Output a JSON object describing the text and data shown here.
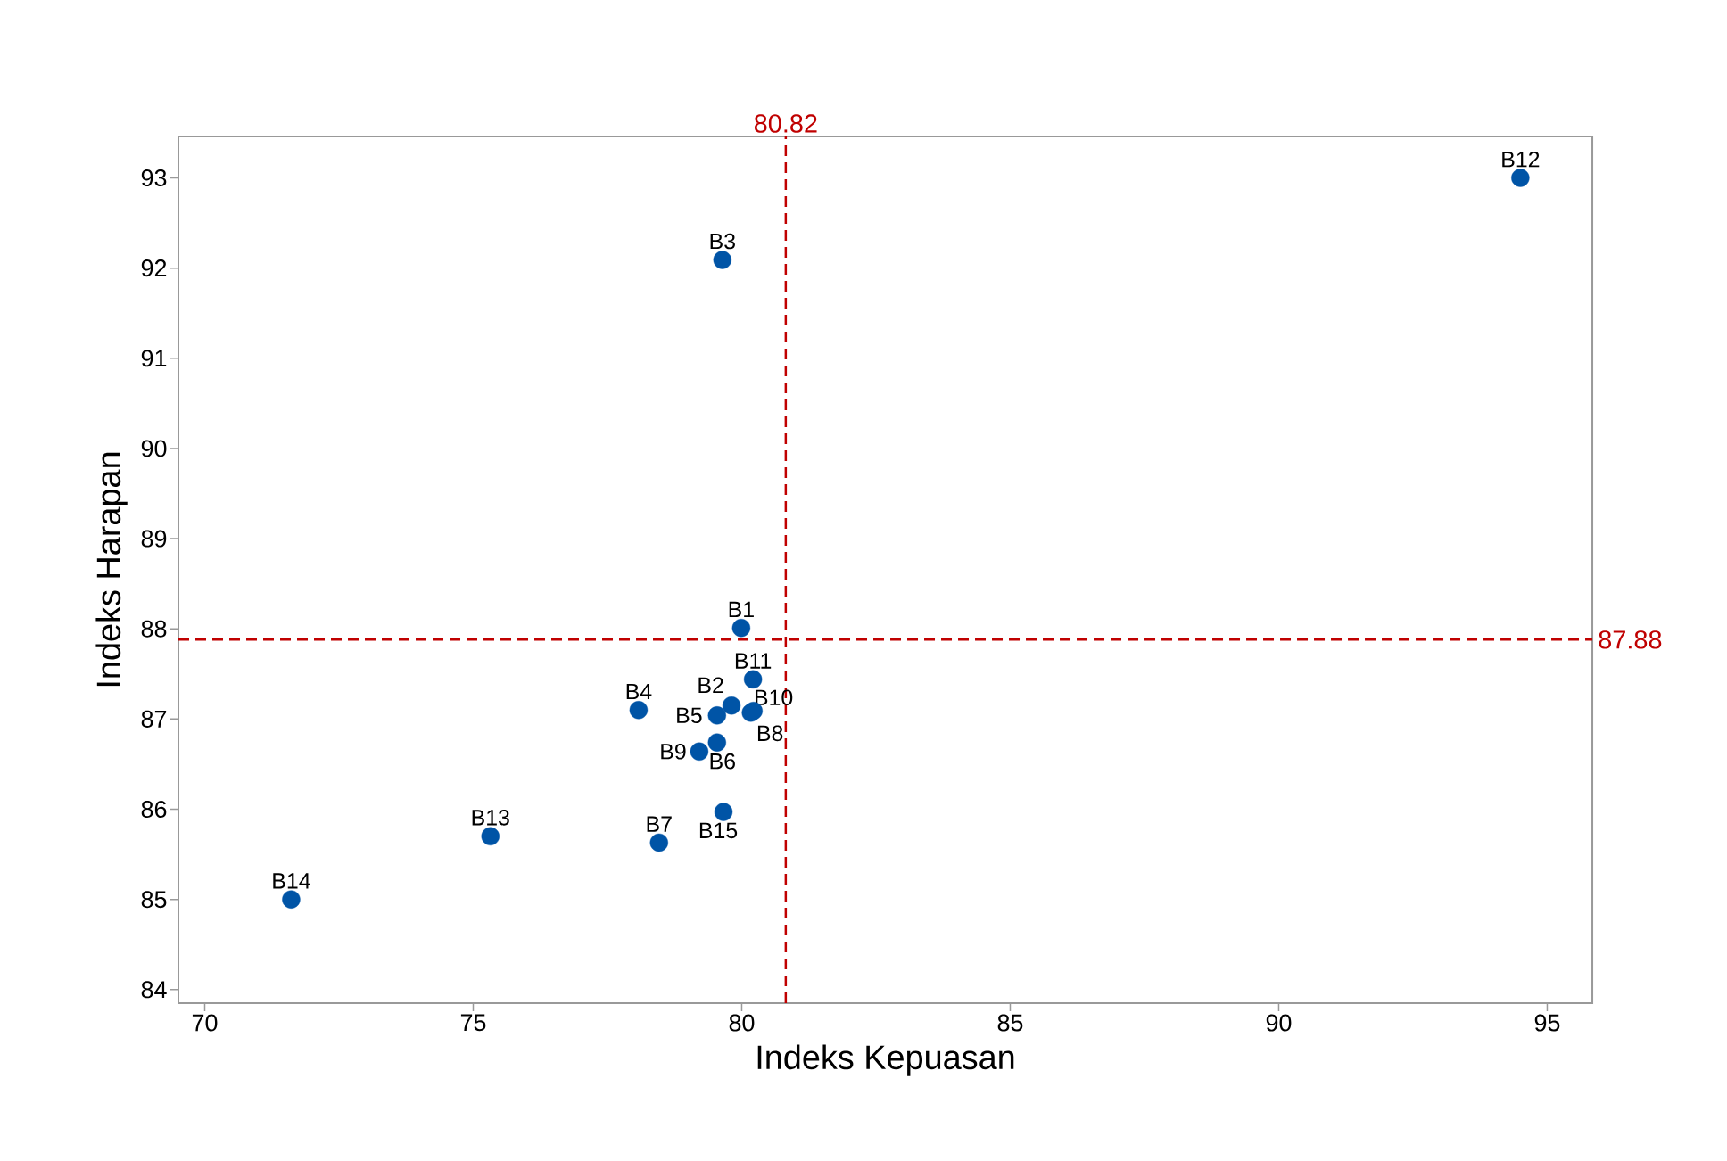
{
  "chart_data": {
    "type": "scatter",
    "xlabel": "Indeks Kepuasan",
    "ylabel": "Indeks Harapan",
    "x": [
      79.99,
      79.81,
      79.64,
      78.08,
      79.54,
      79.54,
      78.46,
      80.17,
      79.21,
      80.22,
      80.21,
      94.5,
      75.32,
      71.61,
      79.66
    ],
    "values": [
      88.01,
      87.15,
      92.09,
      87.1,
      87.04,
      86.74,
      85.63,
      87.07,
      86.64,
      87.09,
      87.44,
      93.0,
      85.7,
      85.0,
      85.97
    ],
    "color": "#0054a6",
    "marker": "circle",
    "xlim": [
      69.51,
      95.84
    ],
    "ylim": [
      83.85,
      93.46
    ],
    "xticks": [
      70,
      75,
      80,
      85,
      90,
      95
    ],
    "yticks": [
      84,
      85,
      86,
      87,
      88,
      89,
      90,
      91,
      92,
      93
    ],
    "ref_lines": [
      {
        "axis": "x",
        "value": 80.82,
        "label": "80.82",
        "color": "#c00000",
        "line_style": "dashed"
      },
      {
        "axis": "y",
        "value": 87.88,
        "label": "87.88",
        "color": "#c00000",
        "line_style": "dashed"
      }
    ],
    "annotations": [
      {
        "text": "B1",
        "x": 79.99,
        "y": 88.01
      },
      {
        "text": "B2",
        "x": 79.81,
        "y": 87.15
      },
      {
        "text": "B3",
        "x": 79.64,
        "y": 92.09
      },
      {
        "text": "B4",
        "x": 78.08,
        "y": 87.1
      },
      {
        "text": "B5",
        "x": 79.54,
        "y": 87.04
      },
      {
        "text": "B6",
        "x": 79.54,
        "y": 86.74
      },
      {
        "text": "B7",
        "x": 78.46,
        "y": 85.63
      },
      {
        "text": "B8",
        "x": 80.17,
        "y": 87.07
      },
      {
        "text": "B9",
        "x": 79.21,
        "y": 86.64
      },
      {
        "text": "B10",
        "x": 80.22,
        "y": 87.09
      },
      {
        "text": "B11",
        "x": 80.21,
        "y": 87.44
      },
      {
        "text": "B12",
        "x": 94.5,
        "y": 93.0
      },
      {
        "text": "B13",
        "x": 75.32,
        "y": 85.7
      },
      {
        "text": "B14",
        "x": 71.61,
        "y": 85.0
      },
      {
        "text": "B15",
        "x": 79.66,
        "y": 85.97
      }
    ]
  }
}
